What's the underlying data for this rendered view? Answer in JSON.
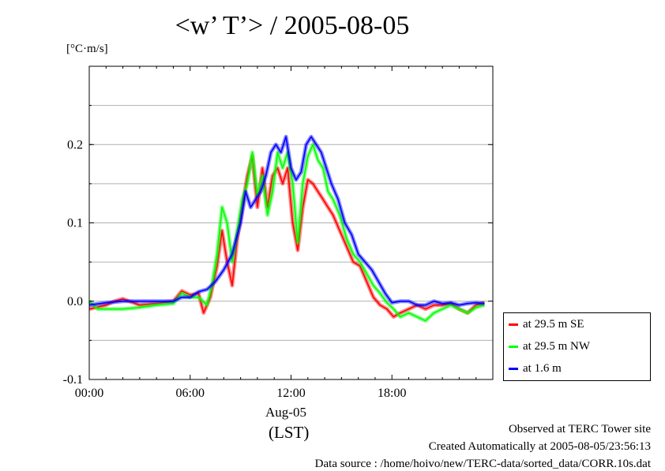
{
  "title": "<w’ T’> / 2005-08-05",
  "y_unit_label": "[°C·m/s]",
  "date_label": "Aug-05",
  "time_zone_label": "(LST)",
  "footer": {
    "line1": "Observed at TERC Tower site",
    "line2": "Created Automatically at 2005-08-05/23:56:13",
    "line3": "Data source : /home/hoivo/new/TERC-data/sorted_data/CORR.10s.dat"
  },
  "chart_data": {
    "type": "line",
    "title": "<w’ T’> / 2005-08-05",
    "xlabel": "(LST)",
    "ylabel": "[°C·m/s]",
    "x_unit": "hours",
    "xlim": [
      0,
      24
    ],
    "ylim": [
      -0.1,
      0.3
    ],
    "x_ticks": [
      0,
      6,
      12,
      18
    ],
    "x_tick_labels": [
      "00:00",
      "06:00",
      "12:00",
      "18:00"
    ],
    "y_ticks": [
      -0.1,
      0.0,
      0.1,
      0.2
    ],
    "y_tick_labels": [
      "-0.1",
      "0.0",
      "0.1",
      "0.2"
    ],
    "grid": true,
    "legend_position": "right, below plot",
    "series": [
      {
        "name": "at 29.5 m SE",
        "color": "#ff0000",
        "points": [
          [
            0,
            -0.01
          ],
          [
            1,
            -0.005
          ],
          [
            1.5,
            0.0
          ],
          [
            2,
            0.003
          ],
          [
            3,
            -0.005
          ],
          [
            4,
            -0.003
          ],
          [
            5,
            0.0
          ],
          [
            5.5,
            0.013
          ],
          [
            6,
            0.008
          ],
          [
            6.5,
            0.01
          ],
          [
            6.8,
            -0.015
          ],
          [
            7.2,
            0.005
          ],
          [
            7.6,
            0.045
          ],
          [
            7.9,
            0.09
          ],
          [
            8.2,
            0.05
          ],
          [
            8.5,
            0.02
          ],
          [
            8.8,
            0.08
          ],
          [
            9.1,
            0.12
          ],
          [
            9.4,
            0.16
          ],
          [
            9.7,
            0.185
          ],
          [
            10.0,
            0.12
          ],
          [
            10.3,
            0.17
          ],
          [
            10.6,
            0.12
          ],
          [
            10.9,
            0.16
          ],
          [
            11.2,
            0.17
          ],
          [
            11.5,
            0.15
          ],
          [
            11.8,
            0.17
          ],
          [
            12.1,
            0.1
          ],
          [
            12.4,
            0.065
          ],
          [
            12.7,
            0.12
          ],
          [
            13.0,
            0.155
          ],
          [
            13.3,
            0.15
          ],
          [
            13.6,
            0.14
          ],
          [
            13.9,
            0.13
          ],
          [
            14.2,
            0.12
          ],
          [
            14.5,
            0.11
          ],
          [
            14.9,
            0.09
          ],
          [
            15.3,
            0.07
          ],
          [
            15.7,
            0.05
          ],
          [
            16.1,
            0.045
          ],
          [
            16.5,
            0.025
          ],
          [
            16.9,
            0.005
          ],
          [
            17.3,
            -0.005
          ],
          [
            17.7,
            -0.01
          ],
          [
            18.1,
            -0.02
          ],
          [
            18.5,
            -0.015
          ],
          [
            19.0,
            -0.01
          ],
          [
            19.5,
            -0.005
          ],
          [
            20,
            -0.01
          ],
          [
            20.5,
            -0.005
          ],
          [
            21,
            -0.005
          ],
          [
            21.5,
            -0.003
          ],
          [
            22,
            -0.01
          ],
          [
            22.5,
            -0.015
          ],
          [
            23,
            -0.005
          ],
          [
            23.5,
            -0.002
          ]
        ]
      },
      {
        "name": "at 29.5 m NW",
        "color": "#00ff00",
        "points": [
          [
            0,
            0.0
          ],
          [
            0.5,
            -0.01
          ],
          [
            1,
            -0.01
          ],
          [
            2,
            -0.01
          ],
          [
            3,
            -0.008
          ],
          [
            4,
            -0.005
          ],
          [
            5,
            -0.003
          ],
          [
            5.5,
            0.01
          ],
          [
            6,
            0.005
          ],
          [
            6.5,
            0.005
          ],
          [
            7.0,
            -0.005
          ],
          [
            7.3,
            0.02
          ],
          [
            7.6,
            0.06
          ],
          [
            7.9,
            0.12
          ],
          [
            8.2,
            0.1
          ],
          [
            8.5,
            0.05
          ],
          [
            8.8,
            0.09
          ],
          [
            9.1,
            0.13
          ],
          [
            9.4,
            0.15
          ],
          [
            9.7,
            0.19
          ],
          [
            10.0,
            0.135
          ],
          [
            10.3,
            0.16
          ],
          [
            10.6,
            0.11
          ],
          [
            10.9,
            0.14
          ],
          [
            11.2,
            0.19
          ],
          [
            11.5,
            0.17
          ],
          [
            11.8,
            0.19
          ],
          [
            12.1,
            0.15
          ],
          [
            12.4,
            0.075
          ],
          [
            12.7,
            0.15
          ],
          [
            13.0,
            0.185
          ],
          [
            13.3,
            0.2
          ],
          [
            13.6,
            0.18
          ],
          [
            13.9,
            0.17
          ],
          [
            14.2,
            0.14
          ],
          [
            14.5,
            0.13
          ],
          [
            14.9,
            0.11
          ],
          [
            15.3,
            0.08
          ],
          [
            15.7,
            0.06
          ],
          [
            16.1,
            0.05
          ],
          [
            16.5,
            0.035
          ],
          [
            16.9,
            0.02
          ],
          [
            17.3,
            0.01
          ],
          [
            17.7,
            -0.002
          ],
          [
            18.1,
            -0.01
          ],
          [
            18.5,
            -0.02
          ],
          [
            19.0,
            -0.015
          ],
          [
            19.5,
            -0.02
          ],
          [
            20,
            -0.025
          ],
          [
            20.5,
            -0.015
          ],
          [
            21,
            -0.01
          ],
          [
            21.5,
            -0.005
          ],
          [
            22,
            -0.01
          ],
          [
            22.5,
            -0.015
          ],
          [
            23,
            -0.008
          ],
          [
            23.5,
            -0.005
          ]
        ]
      },
      {
        "name": "at 1.6 m",
        "color": "#0000ff",
        "points": [
          [
            0,
            -0.005
          ],
          [
            1,
            -0.002
          ],
          [
            2,
            0.0
          ],
          [
            3,
            0.0
          ],
          [
            4,
            0.0
          ],
          [
            5,
            0.0
          ],
          [
            5.5,
            0.005
          ],
          [
            6,
            0.005
          ],
          [
            6.5,
            0.012
          ],
          [
            7.0,
            0.015
          ],
          [
            7.5,
            0.025
          ],
          [
            8.0,
            0.04
          ],
          [
            8.5,
            0.06
          ],
          [
            9.0,
            0.1
          ],
          [
            9.3,
            0.14
          ],
          [
            9.6,
            0.12
          ],
          [
            9.9,
            0.13
          ],
          [
            10.2,
            0.14
          ],
          [
            10.5,
            0.16
          ],
          [
            10.8,
            0.19
          ],
          [
            11.1,
            0.2
          ],
          [
            11.4,
            0.19
          ],
          [
            11.7,
            0.21
          ],
          [
            12.0,
            0.17
          ],
          [
            12.3,
            0.155
          ],
          [
            12.6,
            0.165
          ],
          [
            12.9,
            0.2
          ],
          [
            13.2,
            0.21
          ],
          [
            13.5,
            0.2
          ],
          [
            13.8,
            0.19
          ],
          [
            14.1,
            0.17
          ],
          [
            14.4,
            0.15
          ],
          [
            14.8,
            0.13
          ],
          [
            15.2,
            0.1
          ],
          [
            15.6,
            0.085
          ],
          [
            16.0,
            0.06
          ],
          [
            16.4,
            0.05
          ],
          [
            16.8,
            0.04
          ],
          [
            17.2,
            0.025
          ],
          [
            17.6,
            0.01
          ],
          [
            18.0,
            -0.002
          ],
          [
            18.5,
            0.0
          ],
          [
            19.0,
            0.0
          ],
          [
            19.5,
            -0.005
          ],
          [
            20,
            -0.005
          ],
          [
            20.5,
            0.0
          ],
          [
            21,
            -0.003
          ],
          [
            21.5,
            -0.002
          ],
          [
            22,
            -0.005
          ],
          [
            22.5,
            -0.003
          ],
          [
            23,
            -0.002
          ],
          [
            23.5,
            -0.003
          ]
        ]
      }
    ]
  }
}
